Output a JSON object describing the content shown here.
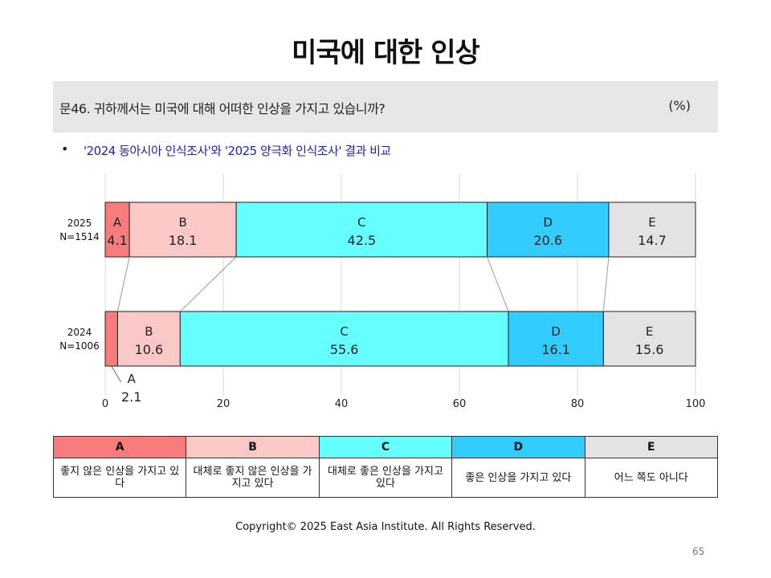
{
  "page": {
    "title": "미국에 대한 인상",
    "question": "문46. 귀하께서는 미국에 대해 어떠한 인상을 가지고 있습니까?",
    "unit": "(%)",
    "bullet": "•",
    "note": "'2024 동아시아 인식조사'와 '2025 양극화 인식조사' 결과 비교",
    "copyright": "Copyright© 2025 East Asia Institute. All Rights Reserved.",
    "page_number": "65"
  },
  "colors": {
    "A": "#f87c7c",
    "B": "#fbc8c8",
    "C": "#66ffff",
    "D": "#33ccff",
    "E": "#e4e2e4"
  },
  "legend": [
    {
      "key": "A",
      "label": "좋지 않은 인상을 가지고 있다"
    },
    {
      "key": "B",
      "label": "대체로 좋지 않은 인상을 가지고 있다"
    },
    {
      "key": "C",
      "label": "대체로 좋은 인상을 가지고 있다"
    },
    {
      "key": "D",
      "label": "좋은 인상을 가지고 있다"
    },
    {
      "key": "E",
      "label": "어느 쪽도 아니다"
    }
  ],
  "chart_data": {
    "type": "bar",
    "stacked": true,
    "orientation": "horizontal",
    "xlim": [
      0,
      100
    ],
    "x_ticks": [
      0,
      20,
      40,
      60,
      80,
      100
    ],
    "grid": true,
    "categories": [
      "A",
      "B",
      "C",
      "D",
      "E"
    ],
    "rows": [
      {
        "line1": "2025",
        "line2": "N=1514",
        "values": [
          4.1,
          18.1,
          42.5,
          20.6,
          14.7
        ]
      },
      {
        "line1": "2024",
        "line2": "N=1006",
        "values": [
          2.1,
          10.6,
          55.6,
          16.1,
          15.6
        ]
      }
    ]
  }
}
